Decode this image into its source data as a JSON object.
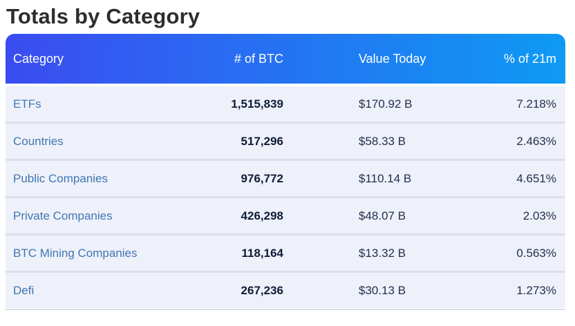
{
  "title": "Totals by Category",
  "table": {
    "columns": [
      "Category",
      "# of BTC",
      "Value Today",
      "% of 21m"
    ],
    "rows": [
      {
        "category": "ETFs",
        "btc": "1,515,839",
        "value": "$170.92 B",
        "pct": "7.218%"
      },
      {
        "category": "Countries",
        "btc": "517,296",
        "value": "$58.33 B",
        "pct": "2.463%"
      },
      {
        "category": "Public Companies",
        "btc": "976,772",
        "value": "$110.14 B",
        "pct": "4.651%"
      },
      {
        "category": "Private Companies",
        "btc": "426,298",
        "value": "$48.07 B",
        "pct": "2.03%"
      },
      {
        "category": "BTC Mining Companies",
        "btc": "118,164",
        "value": "$13.32 B",
        "pct": "0.563%"
      },
      {
        "category": "Defi",
        "btc": "267,236",
        "value": "$30.13 B",
        "pct": "1.273%"
      }
    ],
    "colors": {
      "header_gradient_left": "#3b4cf0",
      "header_gradient_right": "#0e9af4",
      "header_text": "#ffffff",
      "row_background": "#eef1f9",
      "row_divider": "#dcdfee",
      "category_link": "#4076b4",
      "btc_number": "#101b38",
      "value_text": "#232f4e",
      "title_text": "#2d2d2d"
    }
  }
}
